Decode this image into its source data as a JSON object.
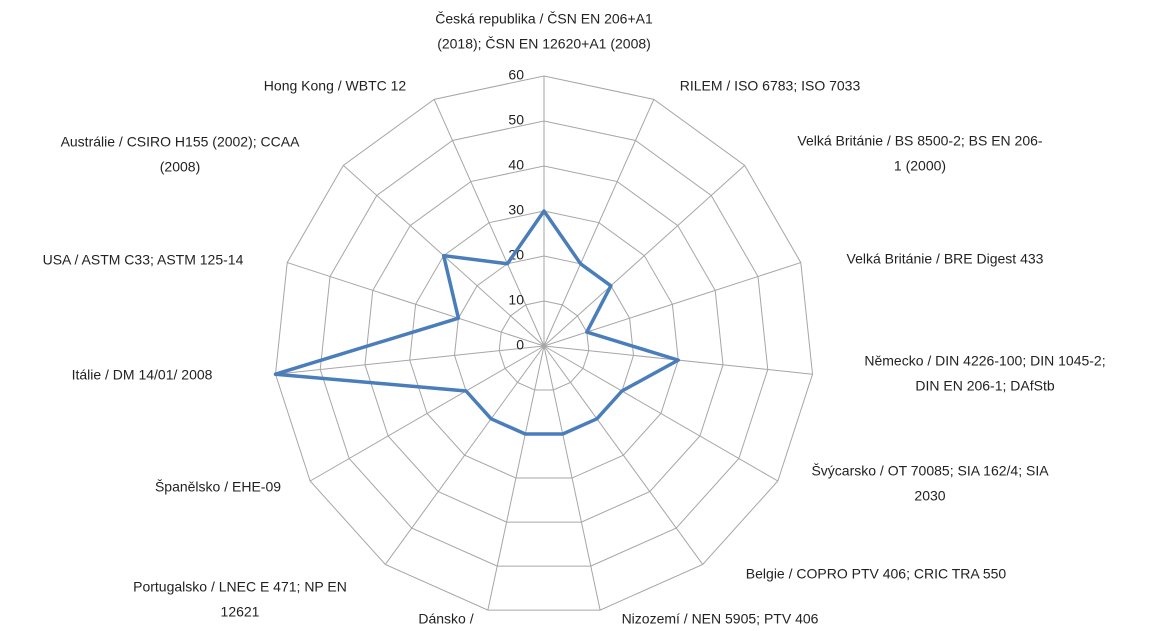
{
  "chart_data": {
    "type": "radar",
    "categories": [
      [
        "Česká republika / ČSN EN 206+A1",
        "(2018); ČSN EN 12620+A1 (2008)"
      ],
      [
        "RILEM / ISO 6783; ISO 7033"
      ],
      [
        "Velká Británie / BS 8500-2; BS EN 206-",
        "1 (2000)"
      ],
      [
        "Velká Británie / BRE Digest 433"
      ],
      [
        "Německo / DIN 4226-100; DIN 1045-2;",
        "DIN EN 206-1; DAfStb"
      ],
      [
        "Švýcarsko / OT 70085; SIA 162/4; SIA",
        "2030"
      ],
      [
        "Belgie / COPRO PTV 406; CRIC TRA 550"
      ],
      [
        "Nizozemí / NEN 5905; PTV 406"
      ],
      [
        "Dánsko /"
      ],
      [
        "Portugalsko / LNEC E 471; NP EN",
        "12621"
      ],
      [
        "Španělsko / EHE-09"
      ],
      [
        "Itálie / DM 14/01/ 2008"
      ],
      [
        "USA / ASTM C33; ASTM 125-14"
      ],
      [
        "Austrálie / CSIRO H155 (2002); CCAA",
        "(2008)"
      ],
      [
        "Hong Kong / WBTC 12"
      ]
    ],
    "values": [
      30,
      20,
      20,
      10,
      30,
      20,
      20,
      20,
      20,
      20,
      20,
      60,
      20,
      30,
      20
    ],
    "color": "#4a7ebb",
    "ylim": [
      0,
      60
    ],
    "yticks": [
      0,
      10,
      20,
      30,
      40,
      50,
      60
    ],
    "grid": true
  }
}
